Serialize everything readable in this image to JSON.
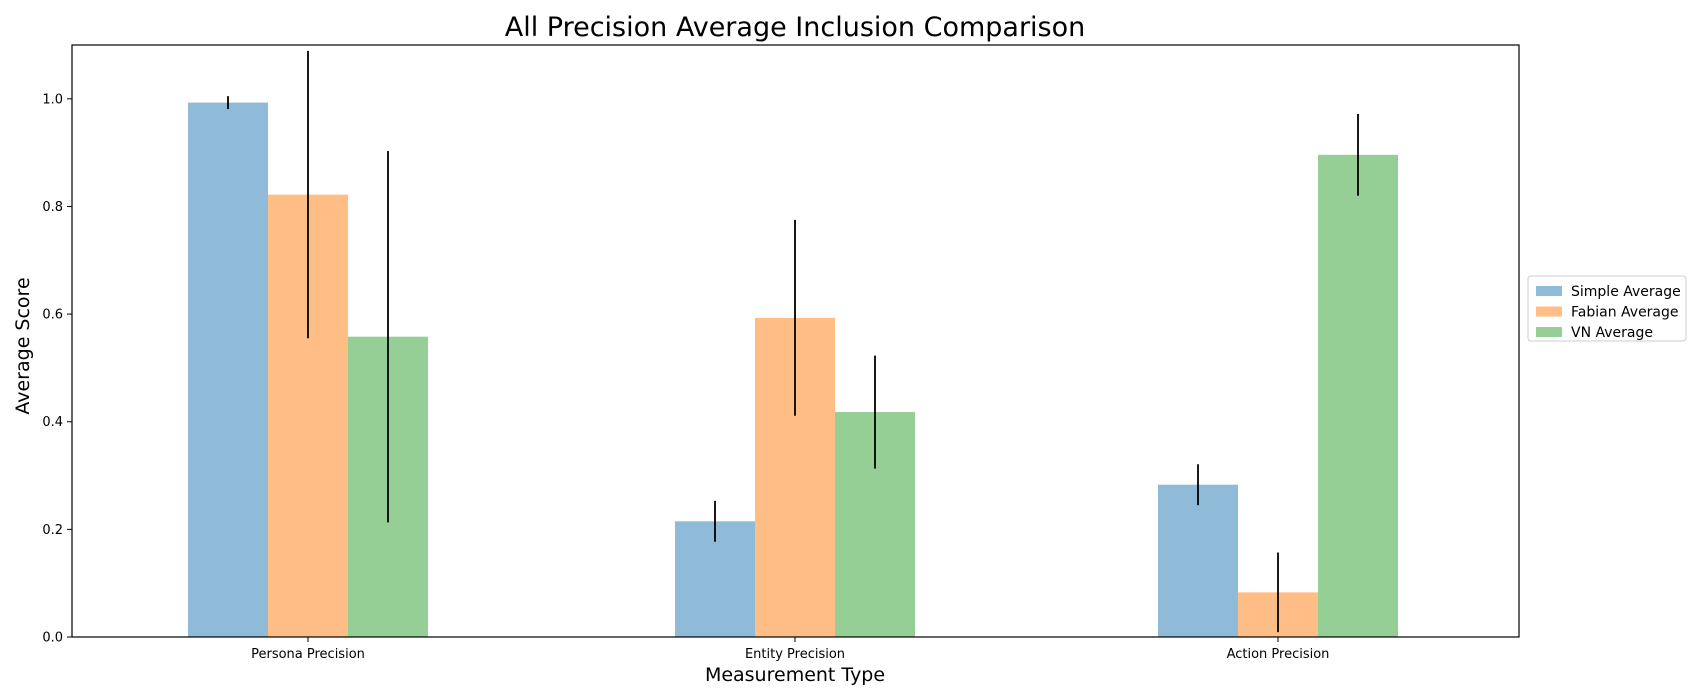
{
  "chart_data": {
    "type": "bar",
    "title": "All Precision Average Inclusion Comparison",
    "xlabel": "Measurement Type",
    "ylabel": "Average Score",
    "categories": [
      "Persona Precision",
      "Entity Precision",
      "Action Precision"
    ],
    "ylim": [
      0,
      1.1
    ],
    "yticks": [
      "0.0",
      "0.2",
      "0.4",
      "0.6",
      "0.8",
      "1.0"
    ],
    "grid": false,
    "legend_position": "center-right outside",
    "series": [
      {
        "name": "Simple Average",
        "color": "#8fbad8",
        "values": [
          0.993,
          0.215,
          0.283
        ],
        "errors": [
          0.012,
          0.038,
          0.038
        ]
      },
      {
        "name": "Fabian Average",
        "color": "#ffbe86",
        "values": [
          0.822,
          0.593,
          0.083
        ],
        "errors": [
          0.267,
          0.182,
          0.074
        ]
      },
      {
        "name": "VN Average",
        "color": "#95cf95",
        "values": [
          0.558,
          0.418,
          0.896
        ],
        "errors": [
          0.345,
          0.105,
          0.076
        ]
      }
    ]
  }
}
